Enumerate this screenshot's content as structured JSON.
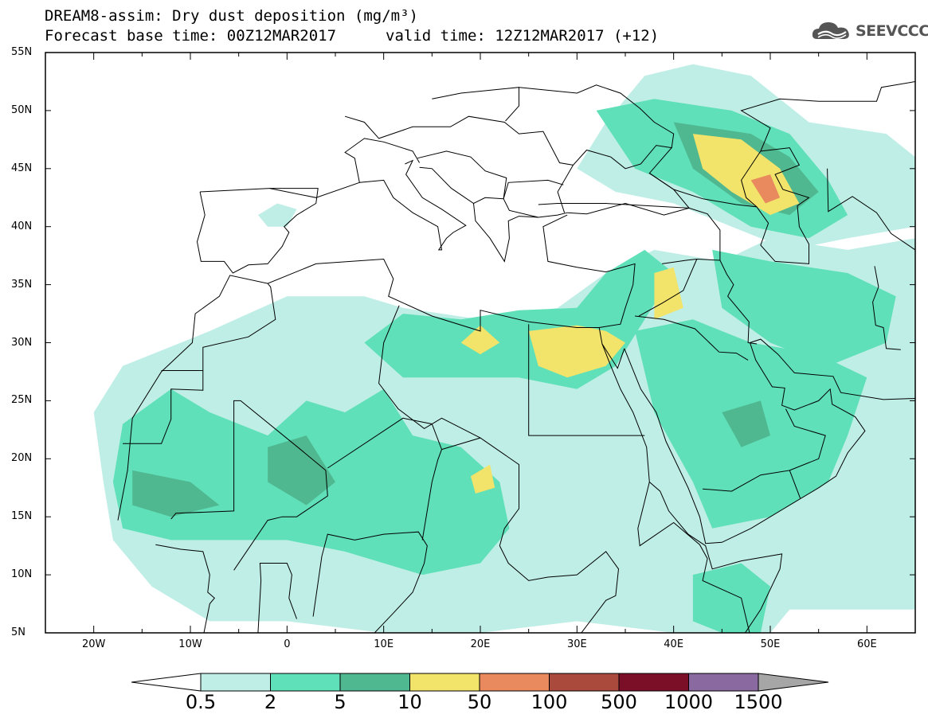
{
  "header": {
    "title": "DREAM8-assim: Dry dust deposition (mg/m³)",
    "base_time": "Forecast base time: 00Z12MAR2017",
    "valid_time": "valid time: 12Z12MAR2017 (+12)",
    "logo_text": "SEEVCCC",
    "logo_icon": "cloud-logo-icon"
  },
  "map": {
    "projection": "lat-lon",
    "lon_range": [
      -25,
      65
    ],
    "lat_range": [
      5,
      55
    ],
    "lat_ticks": [
      "55N",
      "50N",
      "45N",
      "40N",
      "35N",
      "30N",
      "25N",
      "20N",
      "15N",
      "10N",
      "5N"
    ],
    "lon_ticks": [
      "20W",
      "10W",
      "0",
      "10E",
      "20E",
      "30E",
      "40E",
      "50E",
      "60E"
    ]
  },
  "legend": {
    "labels": [
      "0.5",
      "2",
      "5",
      "10",
      "50",
      "100",
      "500",
      "1000",
      "1500"
    ],
    "colors": [
      "#bfeee6",
      "#5fe0b8",
      "#50b890",
      "#f2e36a",
      "#e88a5e",
      "#a94a3c",
      "#7c0f28",
      "#8a68a0",
      "#a6a6a6"
    ],
    "under_color": "#ffffff",
    "over_color": "#a6a6a6"
  }
}
